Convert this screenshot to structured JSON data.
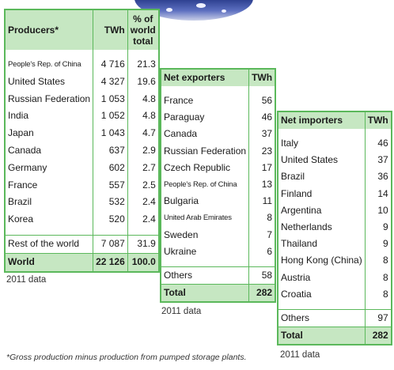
{
  "producers": {
    "headers": {
      "name": "Producers*",
      "twh": "TWh",
      "pct": "% of world total"
    },
    "rows": [
      {
        "name": "People's Rep. of China",
        "twh": "4 716",
        "pct": "21.3"
      },
      {
        "name": "United States",
        "twh": "4 327",
        "pct": "19.6"
      },
      {
        "name": "Russian Federation",
        "twh": "1 053",
        "pct": "4.8"
      },
      {
        "name": "India",
        "twh": "1 052",
        "pct": "4.8"
      },
      {
        "name": "Japan",
        "twh": "1 043",
        "pct": "4.7"
      },
      {
        "name": "Canada",
        "twh": "637",
        "pct": "2.9"
      },
      {
        "name": "Germany",
        "twh": "602",
        "pct": "2.7"
      },
      {
        "name": "France",
        "twh": "557",
        "pct": "2.5"
      },
      {
        "name": "Brazil",
        "twh": "532",
        "pct": "2.4"
      },
      {
        "name": "Korea",
        "twh": "520",
        "pct": "2.4"
      }
    ],
    "rest": {
      "name": "Rest of the world",
      "twh": "7 087",
      "pct": "31.9"
    },
    "total": {
      "name": "World",
      "twh": "22 126",
      "pct": "100.0"
    },
    "note": "2011 data"
  },
  "exporters": {
    "headers": {
      "name": "Net exporters",
      "twh": "TWh"
    },
    "rows": [
      {
        "name": "France",
        "twh": "56"
      },
      {
        "name": "Paraguay",
        "twh": "46"
      },
      {
        "name": "Canada",
        "twh": "37"
      },
      {
        "name": "Russian Federation",
        "twh": "23"
      },
      {
        "name": "Czech Republic",
        "twh": "17"
      },
      {
        "name": "People's Rep. of China",
        "twh": "13"
      },
      {
        "name": "Bulgaria",
        "twh": "11"
      },
      {
        "name": "United Arab Emirates",
        "twh": "8"
      },
      {
        "name": "Sweden",
        "twh": "7"
      },
      {
        "name": "Ukraine",
        "twh": "6"
      }
    ],
    "others": {
      "name": "Others",
      "twh": "58"
    },
    "total": {
      "name": "Total",
      "twh": "282"
    },
    "note": "2011 data"
  },
  "importers": {
    "headers": {
      "name": "Net importers",
      "twh": "TWh"
    },
    "rows": [
      {
        "name": "Italy",
        "twh": "46"
      },
      {
        "name": "United States",
        "twh": "37"
      },
      {
        "name": "Brazil",
        "twh": "36"
      },
      {
        "name": "Finland",
        "twh": "14"
      },
      {
        "name": "Argentina",
        "twh": "10"
      },
      {
        "name": "Netherlands",
        "twh": "9"
      },
      {
        "name": "Thailand",
        "twh": "9"
      },
      {
        "name": "Hong Kong (China)",
        "twh": "8"
      },
      {
        "name": "Austria",
        "twh": "8"
      },
      {
        "name": "Croatia",
        "twh": "8"
      }
    ],
    "others": {
      "name": "Others",
      "twh": "97"
    },
    "total": {
      "name": "Total",
      "twh": "282"
    },
    "note": "2011 data"
  },
  "footnote": "*Gross production minus production from pumped storage plants.",
  "colors": {
    "border": "#5bb85b",
    "header_fill": "#c6e7c2"
  }
}
